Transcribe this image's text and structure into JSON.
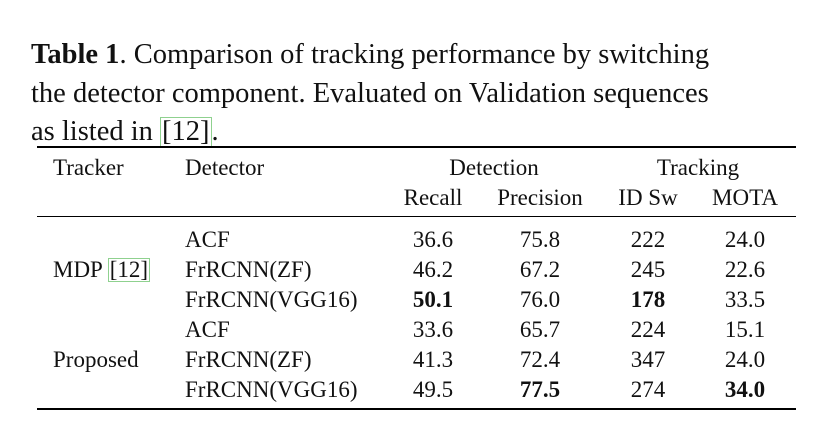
{
  "caption": {
    "label": "Table 1",
    "line1": ".  Comparison of tracking performance by switching",
    "line2": "the detector component.  Evaluated on Validation sequences",
    "line3_pre": "as listed in ",
    "line3_cite": "[12]",
    "line3_post": "."
  },
  "table": {
    "headers": {
      "tracker": "Tracker",
      "detector": "Detector",
      "detection": "Detection",
      "tracking": "Tracking",
      "recall": "Recall",
      "precision": "Precision",
      "idsw": "ID Sw",
      "mota": "MOTA"
    },
    "groups": [
      {
        "tracker": "MDP ",
        "cite": "[12]",
        "rows": [
          {
            "detector": "ACF",
            "recall": "36.6",
            "precision": "75.8",
            "idsw": "222",
            "mota": "24.0"
          },
          {
            "detector": "FrRCNN(ZF)",
            "recall": "46.2",
            "precision": "67.2",
            "idsw": "245",
            "mota": "22.6"
          },
          {
            "detector": "FrRCNN(VGG16)",
            "recall": "50.1",
            "precision": "76.0",
            "idsw": "178",
            "mota": "33.5"
          }
        ]
      },
      {
        "tracker": "Proposed",
        "rows": [
          {
            "detector": "ACF",
            "recall": "33.6",
            "precision": "65.7",
            "idsw": "224",
            "mota": "15.1"
          },
          {
            "detector": "FrRCNN(ZF)",
            "recall": "41.3",
            "precision": "72.4",
            "idsw": "347",
            "mota": "24.0"
          },
          {
            "detector": "FrRCNN(VGG16)",
            "recall": "49.5",
            "precision": "77.5",
            "idsw": "274",
            "mota": "34.0"
          }
        ]
      }
    ],
    "cite_color": "#8fd18f"
  }
}
